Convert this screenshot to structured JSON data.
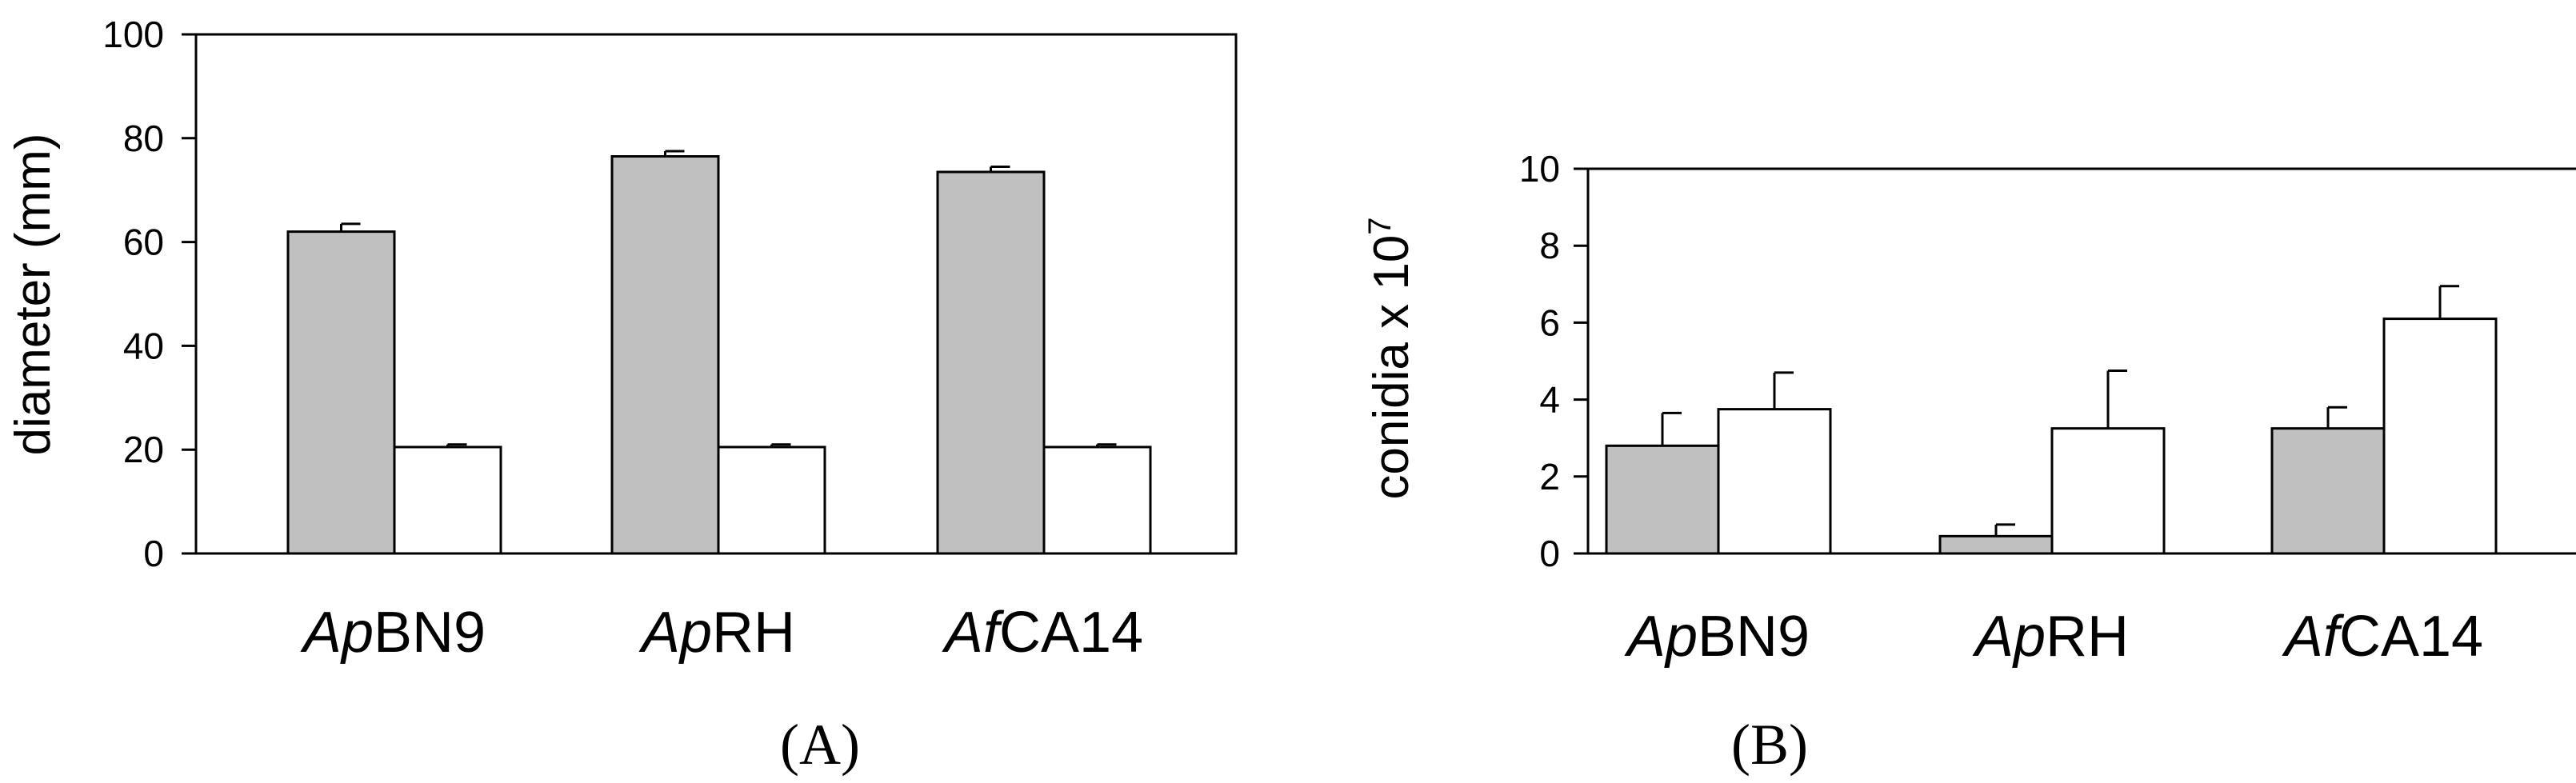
{
  "colors": {
    "series_1": "#c0c0c0",
    "series_2": "#ffffff",
    "stroke": "#000000"
  },
  "chart_data": [
    {
      "type": "bar",
      "panel_label": "(A)",
      "ylabel": "diameter (mm)",
      "ylim": [
        0,
        100
      ],
      "yticks": [
        0,
        20,
        40,
        60,
        80,
        100
      ],
      "categories": [
        {
          "italic": "Ap",
          "rest": "BN9"
        },
        {
          "italic": "Ap",
          "rest": "RH"
        },
        {
          "italic": "Af",
          "rest": "CA14"
        }
      ],
      "series": [
        {
          "values": [
            62,
            76.5,
            73.5
          ],
          "errors": [
            1.5,
            1,
            1
          ]
        },
        {
          "values": [
            20.5,
            20.5,
            20.5
          ],
          "errors": [
            0.5,
            0.5,
            0.5
          ]
        }
      ]
    },
    {
      "type": "bar",
      "panel_label": "(B)",
      "ylabel": {
        "text": "conidia x 10",
        "sup": "7"
      },
      "ylim": [
        0,
        10
      ],
      "yticks": [
        0,
        2,
        4,
        6,
        8,
        10
      ],
      "categories": [
        {
          "italic": "Ap",
          "rest": "BN9"
        },
        {
          "italic": "Ap",
          "rest": "RH"
        },
        {
          "italic": "Af",
          "rest": "CA14"
        }
      ],
      "series": [
        {
          "values": [
            2.8,
            0.45,
            3.25
          ],
          "errors": [
            0.85,
            0.3,
            0.55
          ]
        },
        {
          "values": [
            3.75,
            3.25,
            6.1
          ],
          "errors": [
            0.95,
            1.5,
            0.85
          ]
        }
      ]
    }
  ]
}
